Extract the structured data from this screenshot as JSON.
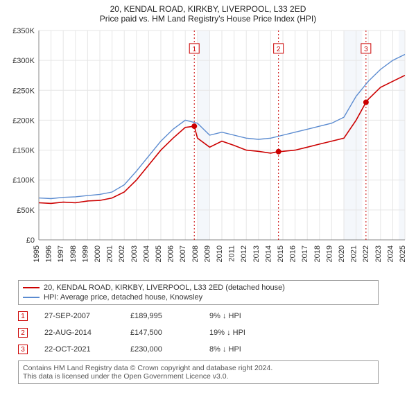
{
  "title_line1": "20, KENDAL ROAD, KIRKBY, LIVERPOOL, L33 2ED",
  "title_line2": "Price paid vs. HM Land Registry's House Price Index (HPI)",
  "chart": {
    "type": "line",
    "background_color": "#ffffff",
    "plot_border_color": "#888888",
    "x_years": [
      1995,
      1996,
      1997,
      1998,
      1999,
      2000,
      2001,
      2002,
      2003,
      2004,
      2005,
      2006,
      2007,
      2008,
      2009,
      2010,
      2011,
      2012,
      2013,
      2014,
      2015,
      2016,
      2017,
      2018,
      2019,
      2020,
      2021,
      2022,
      2023,
      2024,
      2025
    ],
    "xlim": [
      1995,
      2025
    ],
    "y_ticks": [
      0,
      50000,
      100000,
      150000,
      200000,
      250000,
      300000,
      350000
    ],
    "y_tick_labels": [
      "£0",
      "£50K",
      "£100K",
      "£150K",
      "£200K",
      "£250K",
      "£300K",
      "£350K"
    ],
    "ylim": [
      0,
      350000
    ],
    "tick_fontsize": 11,
    "tick_color": "#333333",
    "gridline_color": "#e6e6e6",
    "shade_bands": [
      {
        "from": 2008,
        "to": 2009,
        "color": "#f4f7fb"
      },
      {
        "from": 2020,
        "to": 2021.5,
        "color": "#f4f7fb"
      },
      {
        "from": 2024.5,
        "to": 2025,
        "color": "#f4f7fb"
      }
    ],
    "series": [
      {
        "name": "20, KENDAL ROAD, KIRKBY, LIVERPOOL, L33 2ED (detached house)",
        "color": "#cc0000",
        "line_width": 1.6,
        "points": [
          [
            1995,
            62000
          ],
          [
            1996,
            61000
          ],
          [
            1997,
            63000
          ],
          [
            1998,
            62000
          ],
          [
            1999,
            65000
          ],
          [
            2000,
            66000
          ],
          [
            2001,
            70000
          ],
          [
            2002,
            80000
          ],
          [
            2003,
            100000
          ],
          [
            2004,
            125000
          ],
          [
            2005,
            150000
          ],
          [
            2006,
            170000
          ],
          [
            2007,
            188000
          ],
          [
            2007.74,
            189995
          ],
          [
            2008,
            170000
          ],
          [
            2009,
            155000
          ],
          [
            2010,
            165000
          ],
          [
            2011,
            158000
          ],
          [
            2012,
            150000
          ],
          [
            2013,
            148000
          ],
          [
            2014,
            145000
          ],
          [
            2014.64,
            147500
          ],
          [
            2015,
            148000
          ],
          [
            2016,
            150000
          ],
          [
            2017,
            155000
          ],
          [
            2018,
            160000
          ],
          [
            2019,
            165000
          ],
          [
            2020,
            170000
          ],
          [
            2021,
            200000
          ],
          [
            2021.81,
            230000
          ],
          [
            2022,
            235000
          ],
          [
            2023,
            255000
          ],
          [
            2024,
            265000
          ],
          [
            2025,
            275000
          ]
        ]
      },
      {
        "name": "HPI: Average price, detached house, Knowsley",
        "color": "#5b8bd0",
        "line_width": 1.4,
        "points": [
          [
            1995,
            70000
          ],
          [
            1996,
            69000
          ],
          [
            1997,
            71000
          ],
          [
            1998,
            72000
          ],
          [
            1999,
            74000
          ],
          [
            2000,
            76000
          ],
          [
            2001,
            80000
          ],
          [
            2002,
            92000
          ],
          [
            2003,
            115000
          ],
          [
            2004,
            140000
          ],
          [
            2005,
            165000
          ],
          [
            2006,
            185000
          ],
          [
            2007,
            200000
          ],
          [
            2008,
            195000
          ],
          [
            2009,
            175000
          ],
          [
            2010,
            180000
          ],
          [
            2011,
            175000
          ],
          [
            2012,
            170000
          ],
          [
            2013,
            168000
          ],
          [
            2014,
            170000
          ],
          [
            2015,
            175000
          ],
          [
            2016,
            180000
          ],
          [
            2017,
            185000
          ],
          [
            2018,
            190000
          ],
          [
            2019,
            195000
          ],
          [
            2020,
            205000
          ],
          [
            2021,
            240000
          ],
          [
            2022,
            265000
          ],
          [
            2023,
            285000
          ],
          [
            2024,
            300000
          ],
          [
            2025,
            310000
          ]
        ]
      }
    ],
    "sale_markers": [
      {
        "num": "1",
        "x": 2007.74,
        "y": 189995,
        "label_y": 320000
      },
      {
        "num": "2",
        "x": 2014.64,
        "y": 147500,
        "label_y": 320000
      },
      {
        "num": "3",
        "x": 2021.81,
        "y": 230000,
        "label_y": 320000
      }
    ],
    "sale_line_color": "#cc0000",
    "sale_point_color": "#cc0000",
    "sale_box_border": "#cc0000",
    "sale_box_text": "#cc0000"
  },
  "legend": {
    "items": [
      {
        "color": "#cc0000",
        "label": "20, KENDAL ROAD, KIRKBY, LIVERPOOL, L33 2ED (detached house)"
      },
      {
        "color": "#5b8bd0",
        "label": "HPI: Average price, detached house, Knowsley"
      }
    ]
  },
  "sales": [
    {
      "num": "1",
      "date": "27-SEP-2007",
      "price": "£189,995",
      "pct": "9% ↓ HPI"
    },
    {
      "num": "2",
      "date": "22-AUG-2014",
      "price": "£147,500",
      "pct": "19% ↓ HPI"
    },
    {
      "num": "3",
      "date": "22-OCT-2021",
      "price": "£230,000",
      "pct": "8% ↓ HPI"
    }
  ],
  "footer_line1": "Contains HM Land Registry data © Crown copyright and database right 2024.",
  "footer_line2": "This data is licensed under the Open Government Licence v3.0."
}
